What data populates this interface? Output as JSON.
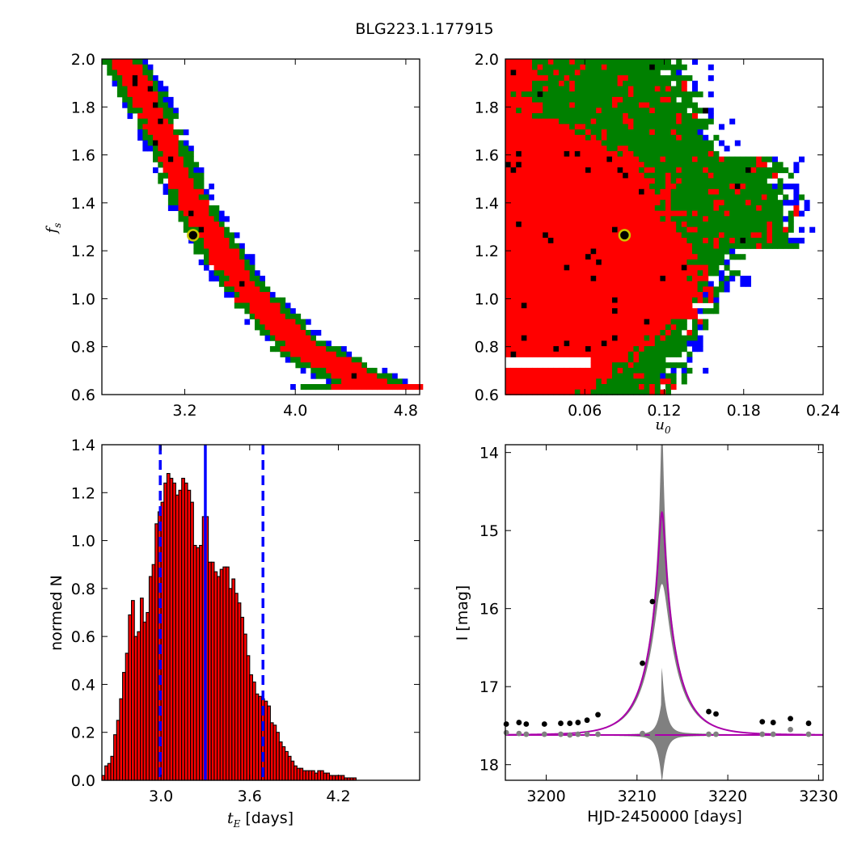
{
  "figure_title": "BLG223.1.177915",
  "colors": {
    "sigma1": "#ff0000",
    "sigma2": "#008000",
    "sigma3": "#0000ff",
    "best": "#000000",
    "marker_edge": "#c8c800",
    "hist_fill": "#ff0000",
    "hist_edge": "#000000",
    "hist_lines": "#0000ff",
    "model": "#aa00aa",
    "band": "#808080",
    "data_dark": "#000000",
    "data_gray": "#808080"
  },
  "chart_data": [
    {
      "id": "ax1",
      "type": "heatmap",
      "title": "",
      "xlabel": "",
      "ylabel": "f_s",
      "xlim": [
        2.6,
        4.9
      ],
      "ylim": [
        0.6,
        2.0
      ],
      "xticks": [
        "3.2",
        "4.0",
        "4.8"
      ],
      "xtick_values": [
        3.2,
        4.0,
        4.8
      ],
      "yticks": [
        "0.6",
        "0.8",
        "1.0",
        "1.2",
        "1.4",
        "1.6",
        "1.8",
        "2.0"
      ],
      "ytick_values": [
        0.6,
        0.8,
        1.0,
        1.2,
        1.4,
        1.6,
        1.8,
        2.0
      ],
      "best_fit": {
        "x": 3.26,
        "y": 1.265
      },
      "ridge": [
        [
          2.75,
          2.0
        ],
        [
          2.95,
          1.8
        ],
        [
          3.1,
          1.6
        ],
        [
          3.25,
          1.4
        ],
        [
          3.45,
          1.2
        ],
        [
          3.7,
          1.0
        ],
        [
          4.05,
          0.8
        ],
        [
          4.5,
          0.65
        ],
        [
          4.75,
          0.62
        ]
      ],
      "bands": [
        0.07,
        0.12,
        0.15
      ]
    },
    {
      "id": "ax2",
      "type": "heatmap",
      "title": "",
      "xlabel": "u_0",
      "ylabel": "",
      "xlim": [
        0.0,
        0.24
      ],
      "ylim": [
        0.6,
        2.0
      ],
      "xticks": [
        "0.06",
        "0.12",
        "0.18",
        "0.24"
      ],
      "xtick_values": [
        0.06,
        0.12,
        0.18,
        0.24
      ],
      "yticks": [
        "0.6",
        "0.8",
        "1.0",
        "1.2",
        "1.4",
        "1.6",
        "1.8",
        "2.0"
      ],
      "ytick_values": [
        0.6,
        0.8,
        1.0,
        1.2,
        1.4,
        1.6,
        1.8,
        2.0
      ],
      "best_fit": {
        "x": 0.09,
        "y": 1.265
      }
    },
    {
      "id": "ax3",
      "type": "bar",
      "title": "",
      "xlabel": "t_E [days]",
      "ylabel": "normed N",
      "xlim": [
        2.6,
        4.75
      ],
      "ylim": [
        0.0,
        1.4
      ],
      "xticks": [
        "3.0",
        "3.6",
        "4.2"
      ],
      "xtick_values": [
        3.0,
        3.6,
        4.2
      ],
      "yticks": [
        "0.0",
        "0.2",
        "0.4",
        "0.6",
        "0.8",
        "1.0",
        "1.2",
        "1.4"
      ],
      "ytick_values": [
        0.0,
        0.2,
        0.4,
        0.6,
        0.8,
        1.0,
        1.2,
        1.4
      ],
      "bin_start": 2.6,
      "bin_width": 0.02,
      "values": [
        0.02,
        0.06,
        0.07,
        0.1,
        0.19,
        0.25,
        0.34,
        0.45,
        0.53,
        0.69,
        0.75,
        0.6,
        0.62,
        0.76,
        0.66,
        0.7,
        0.85,
        0.9,
        1.07,
        1.12,
        1.16,
        1.24,
        1.28,
        1.26,
        1.24,
        1.19,
        1.21,
        1.26,
        1.24,
        1.21,
        1.16,
        0.98,
        0.97,
        0.98,
        1.1,
        1.1,
        0.91,
        0.91,
        0.87,
        0.85,
        0.88,
        0.89,
        0.89,
        0.8,
        0.84,
        0.78,
        0.74,
        0.68,
        0.61,
        0.52,
        0.44,
        0.41,
        0.36,
        0.35,
        0.34,
        0.33,
        0.31,
        0.24,
        0.23,
        0.2,
        0.16,
        0.14,
        0.12,
        0.1,
        0.08,
        0.06,
        0.05,
        0.05,
        0.04,
        0.04,
        0.04,
        0.04,
        0.03,
        0.04,
        0.04,
        0.03,
        0.03,
        0.02,
        0.02,
        0.02,
        0.02,
        0.02,
        0.01,
        0.01,
        0.01,
        0.01
      ],
      "median": 3.3,
      "lower": 2.995,
      "upper": 3.69
    },
    {
      "id": "ax4",
      "type": "line",
      "title": "",
      "xlabel": "HJD-2450000 [days]",
      "ylabel": "I [mag]",
      "xlim": [
        3195.5,
        3230.5
      ],
      "ylim": [
        18.2,
        13.9
      ],
      "xticks": [
        "3200",
        "3210",
        "3220",
        "3230"
      ],
      "xtick_values": [
        3200,
        3210,
        3220,
        3230
      ],
      "yticks": [
        "14",
        "15",
        "16",
        "17",
        "18"
      ],
      "ytick_values": [
        14,
        15,
        16,
        17,
        18
      ],
      "model": {
        "t0": 3212.75,
        "tE": 3.3,
        "u0": 0.09,
        "fs": 1.265,
        "base_mag": 17.62
      },
      "data_dark": [
        [
          3195.6,
          17.48
        ],
        [
          3197.0,
          17.46
        ],
        [
          3197.8,
          17.48
        ],
        [
          3199.8,
          17.48
        ],
        [
          3201.6,
          17.47
        ],
        [
          3202.6,
          17.47
        ],
        [
          3203.5,
          17.46
        ],
        [
          3204.5,
          17.43
        ],
        [
          3205.7,
          17.36
        ],
        [
          3210.6,
          16.7
        ],
        [
          3211.7,
          15.91
        ],
        [
          3217.9,
          17.32
        ],
        [
          3218.7,
          17.35
        ],
        [
          3223.8,
          17.45
        ],
        [
          3225.0,
          17.46
        ],
        [
          3226.9,
          17.41
        ],
        [
          3228.9,
          17.47
        ]
      ],
      "data_gray": [
        [
          3195.6,
          17.59
        ],
        [
          3197.0,
          17.6
        ],
        [
          3197.8,
          17.61
        ],
        [
          3199.8,
          17.61
        ],
        [
          3201.6,
          17.61
        ],
        [
          3202.6,
          17.62
        ],
        [
          3203.5,
          17.61
        ],
        [
          3204.5,
          17.61
        ],
        [
          3205.7,
          17.61
        ],
        [
          3210.6,
          17.6
        ],
        [
          3211.7,
          17.61
        ],
        [
          3217.9,
          17.61
        ],
        [
          3218.7,
          17.61
        ],
        [
          3223.8,
          17.61
        ],
        [
          3225.0,
          17.61
        ],
        [
          3226.9,
          17.55
        ],
        [
          3228.9,
          17.61
        ]
      ]
    }
  ]
}
